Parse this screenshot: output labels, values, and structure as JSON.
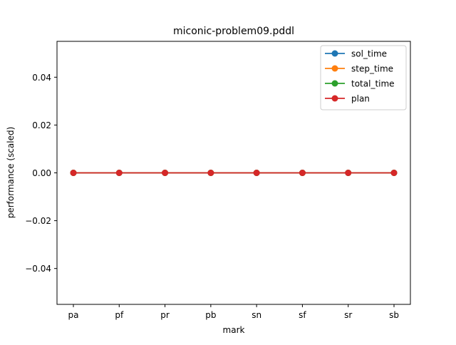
{
  "chart_data": {
    "type": "line",
    "title": "miconic-problem09.pddl",
    "xlabel": "mark",
    "ylabel": "performance (scaled)",
    "categories": [
      "pa",
      "pf",
      "pr",
      "pb",
      "sn",
      "sf",
      "sr",
      "sb"
    ],
    "ylim": [
      -0.055,
      0.055
    ],
    "yticks": [
      0.04,
      0.02,
      0.0,
      -0.02,
      -0.04
    ],
    "ytick_labels": [
      "0.04",
      "0.02",
      "0.00",
      "−0.02",
      "−0.04"
    ],
    "grid": false,
    "legend_position": "top-right",
    "series": [
      {
        "name": "sol_time",
        "color": "#1f77b4",
        "values": [
          0,
          0,
          0,
          0,
          0,
          0,
          0,
          0
        ]
      },
      {
        "name": "step_time",
        "color": "#ff7f0e",
        "values": [
          0,
          0,
          0,
          0,
          0,
          0,
          0,
          0
        ]
      },
      {
        "name": "total_time",
        "color": "#2ca02c",
        "values": [
          0,
          0,
          0,
          0,
          0,
          0,
          0,
          0
        ]
      },
      {
        "name": "plan",
        "color": "#d62728",
        "values": [
          0,
          0,
          0,
          0,
          0,
          0,
          0,
          0
        ]
      }
    ]
  }
}
